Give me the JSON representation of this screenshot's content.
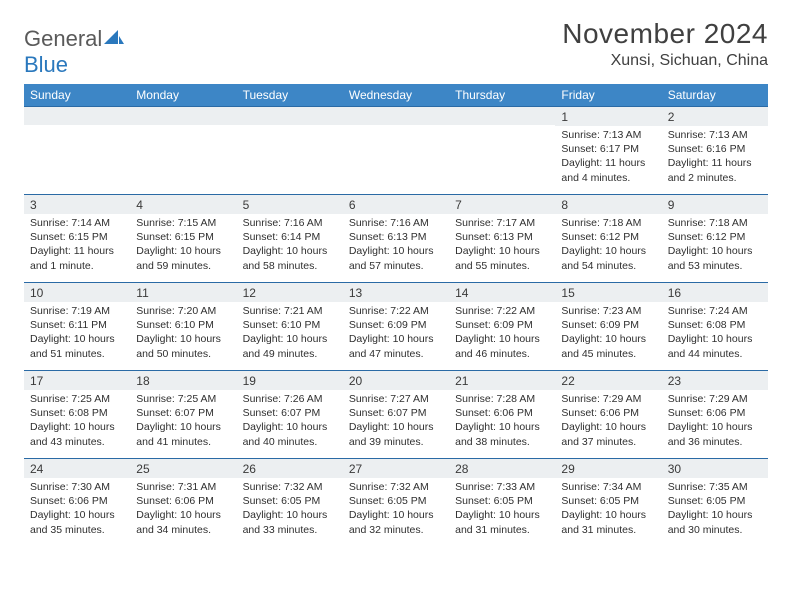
{
  "brand": {
    "part1": "General",
    "part2": "Blue"
  },
  "title": "November 2024",
  "location": "Xunsi, Sichuan, China",
  "colors": {
    "header_bg": "#3d86c6",
    "header_border": "#2a6aa5",
    "daynum_bg": "#eceff1",
    "text": "#333333",
    "brand_gray": "#5a5a5a",
    "brand_blue": "#2a78bd"
  },
  "weekdays": [
    "Sunday",
    "Monday",
    "Tuesday",
    "Wednesday",
    "Thursday",
    "Friday",
    "Saturday"
  ],
  "weeks": [
    [
      {
        "n": "",
        "sr": "",
        "ss": "",
        "dl": ""
      },
      {
        "n": "",
        "sr": "",
        "ss": "",
        "dl": ""
      },
      {
        "n": "",
        "sr": "",
        "ss": "",
        "dl": ""
      },
      {
        "n": "",
        "sr": "",
        "ss": "",
        "dl": ""
      },
      {
        "n": "",
        "sr": "",
        "ss": "",
        "dl": ""
      },
      {
        "n": "1",
        "sr": "Sunrise: 7:13 AM",
        "ss": "Sunset: 6:17 PM",
        "dl": "Daylight: 11 hours and 4 minutes."
      },
      {
        "n": "2",
        "sr": "Sunrise: 7:13 AM",
        "ss": "Sunset: 6:16 PM",
        "dl": "Daylight: 11 hours and 2 minutes."
      }
    ],
    [
      {
        "n": "3",
        "sr": "Sunrise: 7:14 AM",
        "ss": "Sunset: 6:15 PM",
        "dl": "Daylight: 11 hours and 1 minute."
      },
      {
        "n": "4",
        "sr": "Sunrise: 7:15 AM",
        "ss": "Sunset: 6:15 PM",
        "dl": "Daylight: 10 hours and 59 minutes."
      },
      {
        "n": "5",
        "sr": "Sunrise: 7:16 AM",
        "ss": "Sunset: 6:14 PM",
        "dl": "Daylight: 10 hours and 58 minutes."
      },
      {
        "n": "6",
        "sr": "Sunrise: 7:16 AM",
        "ss": "Sunset: 6:13 PM",
        "dl": "Daylight: 10 hours and 57 minutes."
      },
      {
        "n": "7",
        "sr": "Sunrise: 7:17 AM",
        "ss": "Sunset: 6:13 PM",
        "dl": "Daylight: 10 hours and 55 minutes."
      },
      {
        "n": "8",
        "sr": "Sunrise: 7:18 AM",
        "ss": "Sunset: 6:12 PM",
        "dl": "Daylight: 10 hours and 54 minutes."
      },
      {
        "n": "9",
        "sr": "Sunrise: 7:18 AM",
        "ss": "Sunset: 6:12 PM",
        "dl": "Daylight: 10 hours and 53 minutes."
      }
    ],
    [
      {
        "n": "10",
        "sr": "Sunrise: 7:19 AM",
        "ss": "Sunset: 6:11 PM",
        "dl": "Daylight: 10 hours and 51 minutes."
      },
      {
        "n": "11",
        "sr": "Sunrise: 7:20 AM",
        "ss": "Sunset: 6:10 PM",
        "dl": "Daylight: 10 hours and 50 minutes."
      },
      {
        "n": "12",
        "sr": "Sunrise: 7:21 AM",
        "ss": "Sunset: 6:10 PM",
        "dl": "Daylight: 10 hours and 49 minutes."
      },
      {
        "n": "13",
        "sr": "Sunrise: 7:22 AM",
        "ss": "Sunset: 6:09 PM",
        "dl": "Daylight: 10 hours and 47 minutes."
      },
      {
        "n": "14",
        "sr": "Sunrise: 7:22 AM",
        "ss": "Sunset: 6:09 PM",
        "dl": "Daylight: 10 hours and 46 minutes."
      },
      {
        "n": "15",
        "sr": "Sunrise: 7:23 AM",
        "ss": "Sunset: 6:09 PM",
        "dl": "Daylight: 10 hours and 45 minutes."
      },
      {
        "n": "16",
        "sr": "Sunrise: 7:24 AM",
        "ss": "Sunset: 6:08 PM",
        "dl": "Daylight: 10 hours and 44 minutes."
      }
    ],
    [
      {
        "n": "17",
        "sr": "Sunrise: 7:25 AM",
        "ss": "Sunset: 6:08 PM",
        "dl": "Daylight: 10 hours and 43 minutes."
      },
      {
        "n": "18",
        "sr": "Sunrise: 7:25 AM",
        "ss": "Sunset: 6:07 PM",
        "dl": "Daylight: 10 hours and 41 minutes."
      },
      {
        "n": "19",
        "sr": "Sunrise: 7:26 AM",
        "ss": "Sunset: 6:07 PM",
        "dl": "Daylight: 10 hours and 40 minutes."
      },
      {
        "n": "20",
        "sr": "Sunrise: 7:27 AM",
        "ss": "Sunset: 6:07 PM",
        "dl": "Daylight: 10 hours and 39 minutes."
      },
      {
        "n": "21",
        "sr": "Sunrise: 7:28 AM",
        "ss": "Sunset: 6:06 PM",
        "dl": "Daylight: 10 hours and 38 minutes."
      },
      {
        "n": "22",
        "sr": "Sunrise: 7:29 AM",
        "ss": "Sunset: 6:06 PM",
        "dl": "Daylight: 10 hours and 37 minutes."
      },
      {
        "n": "23",
        "sr": "Sunrise: 7:29 AM",
        "ss": "Sunset: 6:06 PM",
        "dl": "Daylight: 10 hours and 36 minutes."
      }
    ],
    [
      {
        "n": "24",
        "sr": "Sunrise: 7:30 AM",
        "ss": "Sunset: 6:06 PM",
        "dl": "Daylight: 10 hours and 35 minutes."
      },
      {
        "n": "25",
        "sr": "Sunrise: 7:31 AM",
        "ss": "Sunset: 6:06 PM",
        "dl": "Daylight: 10 hours and 34 minutes."
      },
      {
        "n": "26",
        "sr": "Sunrise: 7:32 AM",
        "ss": "Sunset: 6:05 PM",
        "dl": "Daylight: 10 hours and 33 minutes."
      },
      {
        "n": "27",
        "sr": "Sunrise: 7:32 AM",
        "ss": "Sunset: 6:05 PM",
        "dl": "Daylight: 10 hours and 32 minutes."
      },
      {
        "n": "28",
        "sr": "Sunrise: 7:33 AM",
        "ss": "Sunset: 6:05 PM",
        "dl": "Daylight: 10 hours and 31 minutes."
      },
      {
        "n": "29",
        "sr": "Sunrise: 7:34 AM",
        "ss": "Sunset: 6:05 PM",
        "dl": "Daylight: 10 hours and 31 minutes."
      },
      {
        "n": "30",
        "sr": "Sunrise: 7:35 AM",
        "ss": "Sunset: 6:05 PM",
        "dl": "Daylight: 10 hours and 30 minutes."
      }
    ]
  ]
}
